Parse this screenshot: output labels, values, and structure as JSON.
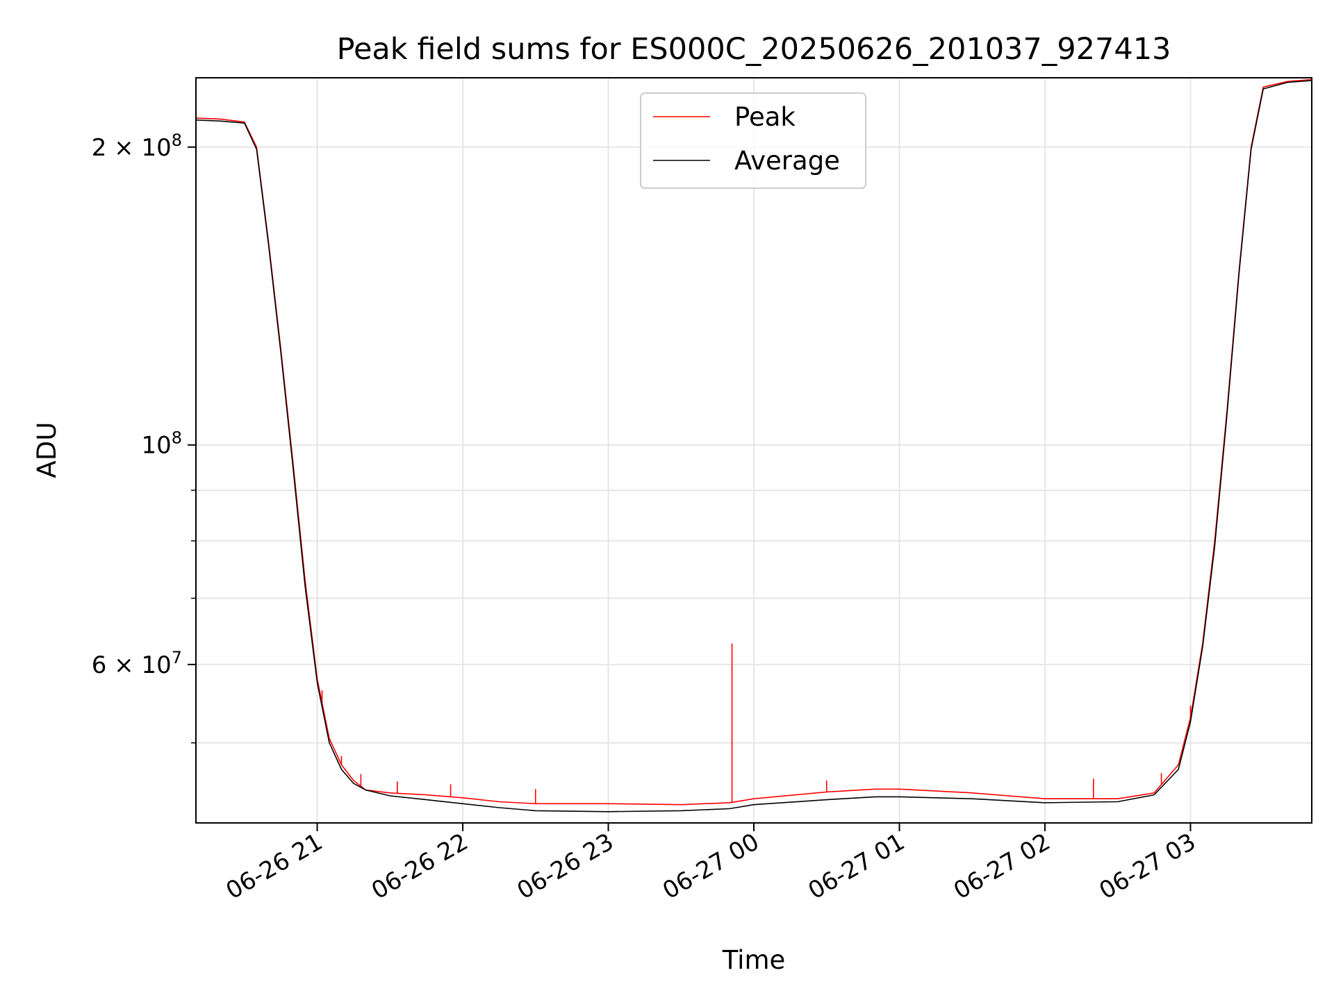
{
  "chart_data": {
    "type": "line",
    "title": "Peak field sums for ES000C_20250626_201037_927413",
    "xlabel": "Time",
    "ylabel": "ADU",
    "yscale": "log",
    "grid": true,
    "legend_placement": "top-center",
    "x_tick_labels": [
      "06-26 21",
      "06-26 22",
      "06-26 23",
      "06-27 00",
      "06-27 01",
      "06-27 02",
      "06-27 03"
    ],
    "y_tick_labels": [
      {
        "value": 200000000,
        "mantissa": "2",
        "times": "×",
        "base": "10",
        "exp": "8"
      },
      {
        "value": 100000000,
        "mantissa": "",
        "times": "",
        "base": "10",
        "exp": "8"
      },
      {
        "value": 60000000,
        "mantissa": "6",
        "times": "×",
        "base": "10",
        "exp": "7"
      }
    ],
    "y_minor_ticks": [
      50000000,
      70000000,
      80000000,
      90000000
    ],
    "xlim": [
      "2025-06-26 20:10",
      "2025-06-27 03:50"
    ],
    "ylim": [
      41500000,
      235000000
    ],
    "series": [
      {
        "name": "Peak",
        "color": "#ff0000",
        "points": [
          [
            "2025-06-26 20:10",
            214000000
          ],
          [
            "2025-06-26 20:20",
            213500000
          ],
          [
            "2025-06-26 20:30",
            212000000
          ],
          [
            "2025-06-26 20:35",
            200000000
          ],
          [
            "2025-06-26 20:40",
            160000000
          ],
          [
            "2025-06-26 20:45",
            125000000
          ],
          [
            "2025-06-26 20:50",
            96000000
          ],
          [
            "2025-06-26 20:55",
            73000000
          ],
          [
            "2025-06-26 21:00",
            58000000
          ],
          [
            "2025-06-26 21:05",
            50500000
          ],
          [
            "2025-06-26 21:10",
            47500000
          ],
          [
            "2025-06-26 21:15",
            45800000
          ],
          [
            "2025-06-26 21:20",
            44800000
          ],
          [
            "2025-06-26 21:30",
            44500000
          ],
          [
            "2025-06-26 21:45",
            44300000
          ],
          [
            "2025-06-26 22:00",
            44000000
          ],
          [
            "2025-06-26 22:15",
            43600000
          ],
          [
            "2025-06-26 22:30",
            43400000
          ],
          [
            "2025-06-26 23:00",
            43400000
          ],
          [
            "2025-06-26 23:30",
            43300000
          ],
          [
            "2025-06-26 23:50",
            43500000
          ],
          [
            "2025-06-27 00:00",
            43900000
          ],
          [
            "2025-06-27 00:30",
            44600000
          ],
          [
            "2025-06-27 00:50",
            44900000
          ],
          [
            "2025-06-27 01:00",
            44900000
          ],
          [
            "2025-06-27 01:30",
            44500000
          ],
          [
            "2025-06-27 02:00",
            43900000
          ],
          [
            "2025-06-27 02:30",
            43900000
          ],
          [
            "2025-06-27 02:45",
            44500000
          ],
          [
            "2025-06-27 02:55",
            47500000
          ],
          [
            "2025-06-27 03:00",
            53000000
          ],
          [
            "2025-06-27 03:05",
            63000000
          ],
          [
            "2025-06-27 03:10",
            80000000
          ],
          [
            "2025-06-27 03:15",
            108000000
          ],
          [
            "2025-06-27 03:20",
            150000000
          ],
          [
            "2025-06-27 03:25",
            200000000
          ],
          [
            "2025-06-27 03:30",
            230000000
          ],
          [
            "2025-06-27 03:40",
            233000000
          ],
          [
            "2025-06-27 03:50",
            234000000
          ]
        ],
        "spikes": [
          [
            "2025-06-26 21:02",
            56500000
          ],
          [
            "2025-06-26 21:10",
            48500000
          ],
          [
            "2025-06-26 21:18",
            46500000
          ],
          [
            "2025-06-26 21:33",
            45700000
          ],
          [
            "2025-06-26 21:55",
            45400000
          ],
          [
            "2025-06-26 22:30",
            44900000
          ],
          [
            "2025-06-26 23:51",
            63000000
          ],
          [
            "2025-06-27 00:30",
            45800000
          ],
          [
            "2025-06-27 02:20",
            46000000
          ],
          [
            "2025-06-27 02:48",
            46600000
          ],
          [
            "2025-06-27 03:00",
            54500000
          ]
        ]
      },
      {
        "name": "Average",
        "color": "#000000",
        "points": [
          [
            "2025-06-26 20:10",
            213000000
          ],
          [
            "2025-06-26 20:20",
            212500000
          ],
          [
            "2025-06-26 20:30",
            211500000
          ],
          [
            "2025-06-26 20:35",
            199000000
          ],
          [
            "2025-06-26 20:40",
            159000000
          ],
          [
            "2025-06-26 20:45",
            124000000
          ],
          [
            "2025-06-26 20:50",
            95000000
          ],
          [
            "2025-06-26 20:55",
            72000000
          ],
          [
            "2025-06-26 21:00",
            57500000
          ],
          [
            "2025-06-26 21:05",
            50000000
          ],
          [
            "2025-06-26 21:10",
            47000000
          ],
          [
            "2025-06-26 21:15",
            45500000
          ],
          [
            "2025-06-26 21:20",
            44800000
          ],
          [
            "2025-06-26 21:30",
            44200000
          ],
          [
            "2025-06-26 21:45",
            43800000
          ],
          [
            "2025-06-26 22:00",
            43400000
          ],
          [
            "2025-06-26 22:15",
            43000000
          ],
          [
            "2025-06-26 22:30",
            42700000
          ],
          [
            "2025-06-26 23:00",
            42600000
          ],
          [
            "2025-06-26 23:30",
            42700000
          ],
          [
            "2025-06-26 23:50",
            42900000
          ],
          [
            "2025-06-27 00:00",
            43300000
          ],
          [
            "2025-06-27 00:30",
            43800000
          ],
          [
            "2025-06-27 00:50",
            44100000
          ],
          [
            "2025-06-27 01:00",
            44100000
          ],
          [
            "2025-06-27 01:30",
            43900000
          ],
          [
            "2025-06-27 02:00",
            43500000
          ],
          [
            "2025-06-27 02:30",
            43600000
          ],
          [
            "2025-06-27 02:45",
            44300000
          ],
          [
            "2025-06-27 02:55",
            47000000
          ],
          [
            "2025-06-27 03:00",
            52500000
          ],
          [
            "2025-06-27 03:05",
            62500000
          ],
          [
            "2025-06-27 03:10",
            79000000
          ],
          [
            "2025-06-27 03:15",
            107000000
          ],
          [
            "2025-06-27 03:20",
            149000000
          ],
          [
            "2025-06-27 03:25",
            199000000
          ],
          [
            "2025-06-27 03:30",
            229000000
          ],
          [
            "2025-06-27 03:40",
            232500000
          ],
          [
            "2025-06-27 03:50",
            233500000
          ]
        ]
      }
    ]
  }
}
